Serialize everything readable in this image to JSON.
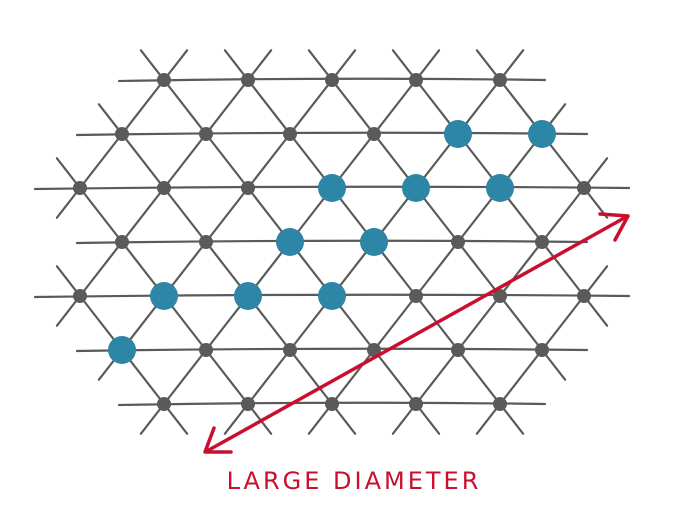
{
  "annotation": "LARGE DIAMETER"
}
